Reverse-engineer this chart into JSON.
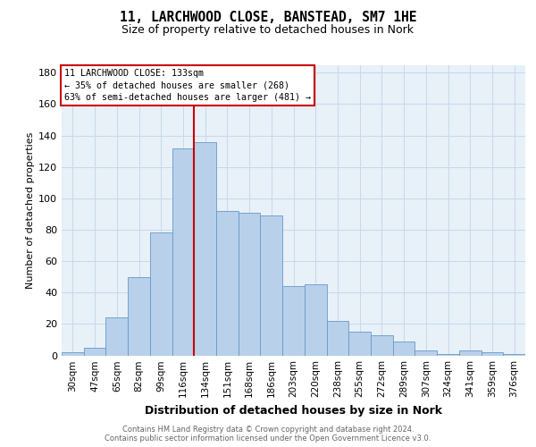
{
  "title_line1": "11, LARCHWOOD CLOSE, BANSTEAD, SM7 1HE",
  "title_line2": "Size of property relative to detached houses in Nork",
  "xlabel": "Distribution of detached houses by size in Nork",
  "ylabel": "Number of detached properties",
  "categories": [
    "30sqm",
    "47sqm",
    "65sqm",
    "82sqm",
    "99sqm",
    "116sqm",
    "134sqm",
    "151sqm",
    "168sqm",
    "186sqm",
    "203sqm",
    "220sqm",
    "238sqm",
    "255sqm",
    "272sqm",
    "289sqm",
    "307sqm",
    "324sqm",
    "341sqm",
    "359sqm",
    "376sqm"
  ],
  "values": [
    2,
    5,
    24,
    50,
    78,
    132,
    136,
    92,
    91,
    89,
    44,
    45,
    22,
    15,
    13,
    9,
    3,
    1,
    3,
    2,
    1
  ],
  "bar_color": "#b8d0ea",
  "bar_edge_color": "#6699cc",
  "ref_line_color": "#cc0000",
  "annotation_line1": "11 LARCHWOOD CLOSE: 133sqm",
  "annotation_line2": "← 35% of detached houses are smaller (268)",
  "annotation_line3": "63% of semi-detached houses are larger (481) →",
  "annotation_box_color": "#ffffff",
  "annotation_box_edge_color": "#cc0000",
  "ylim": [
    0,
    185
  ],
  "yticks": [
    0,
    20,
    40,
    60,
    80,
    100,
    120,
    140,
    160,
    180
  ],
  "footnote1": "Contains HM Land Registry data © Crown copyright and database right 2024.",
  "footnote2": "Contains public sector information licensed under the Open Government Licence v3.0.",
  "grid_color": "#c8d8ec",
  "background_color": "#e8f0f8"
}
